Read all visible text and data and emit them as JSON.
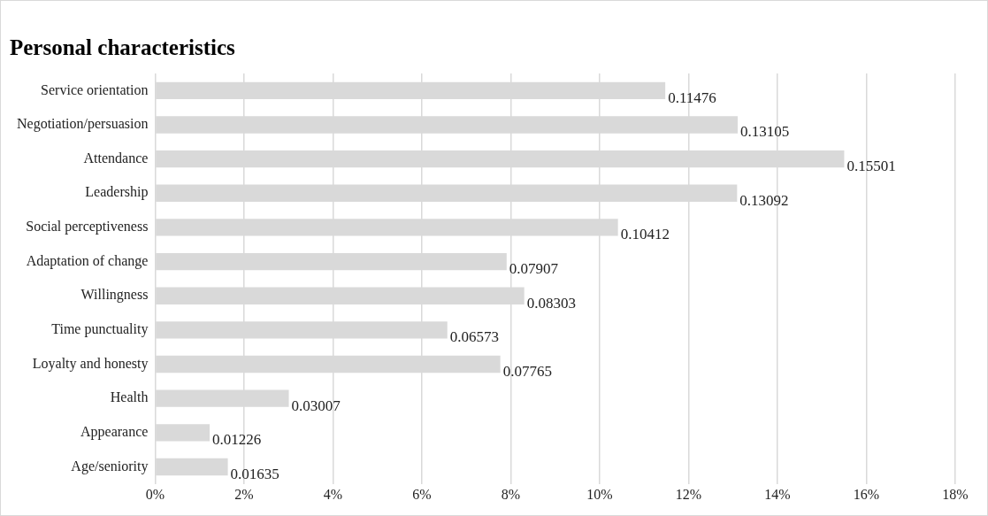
{
  "chart_data": {
    "type": "bar",
    "orientation": "horizontal",
    "title": "Personal characteristics",
    "categories": [
      "Service orientation",
      "Negotiation/persuasion",
      "Attendance",
      "Leadership",
      "Social perceptiveness",
      "Adaptation of change",
      "Willingness",
      "Time punctuality",
      "Loyalty and honesty",
      "Health",
      "Appearance",
      "Age/seniority"
    ],
    "values": [
      0.11476,
      0.13105,
      0.15501,
      0.13092,
      0.10412,
      0.07907,
      0.08303,
      0.06573,
      0.07765,
      0.03007,
      0.01226,
      0.01635
    ],
    "color": "#d9d9d9",
    "xlim": [
      0,
      0.18
    ],
    "xticks": [
      {
        "value": 0,
        "label": "0%"
      },
      {
        "value": 0.02,
        "label": "2%"
      },
      {
        "value": 0.04,
        "label": "4%"
      },
      {
        "value": 0.06,
        "label": "6%"
      },
      {
        "value": 0.08,
        "label": "8%"
      },
      {
        "value": 0.1,
        "label": "10%"
      },
      {
        "value": 0.12,
        "label": "12%"
      },
      {
        "value": 0.14,
        "label": "14%"
      },
      {
        "value": 0.16,
        "label": "16%"
      },
      {
        "value": 0.18,
        "label": "18%"
      }
    ],
    "grid": "x",
    "data_labels": true,
    "legend": false
  }
}
